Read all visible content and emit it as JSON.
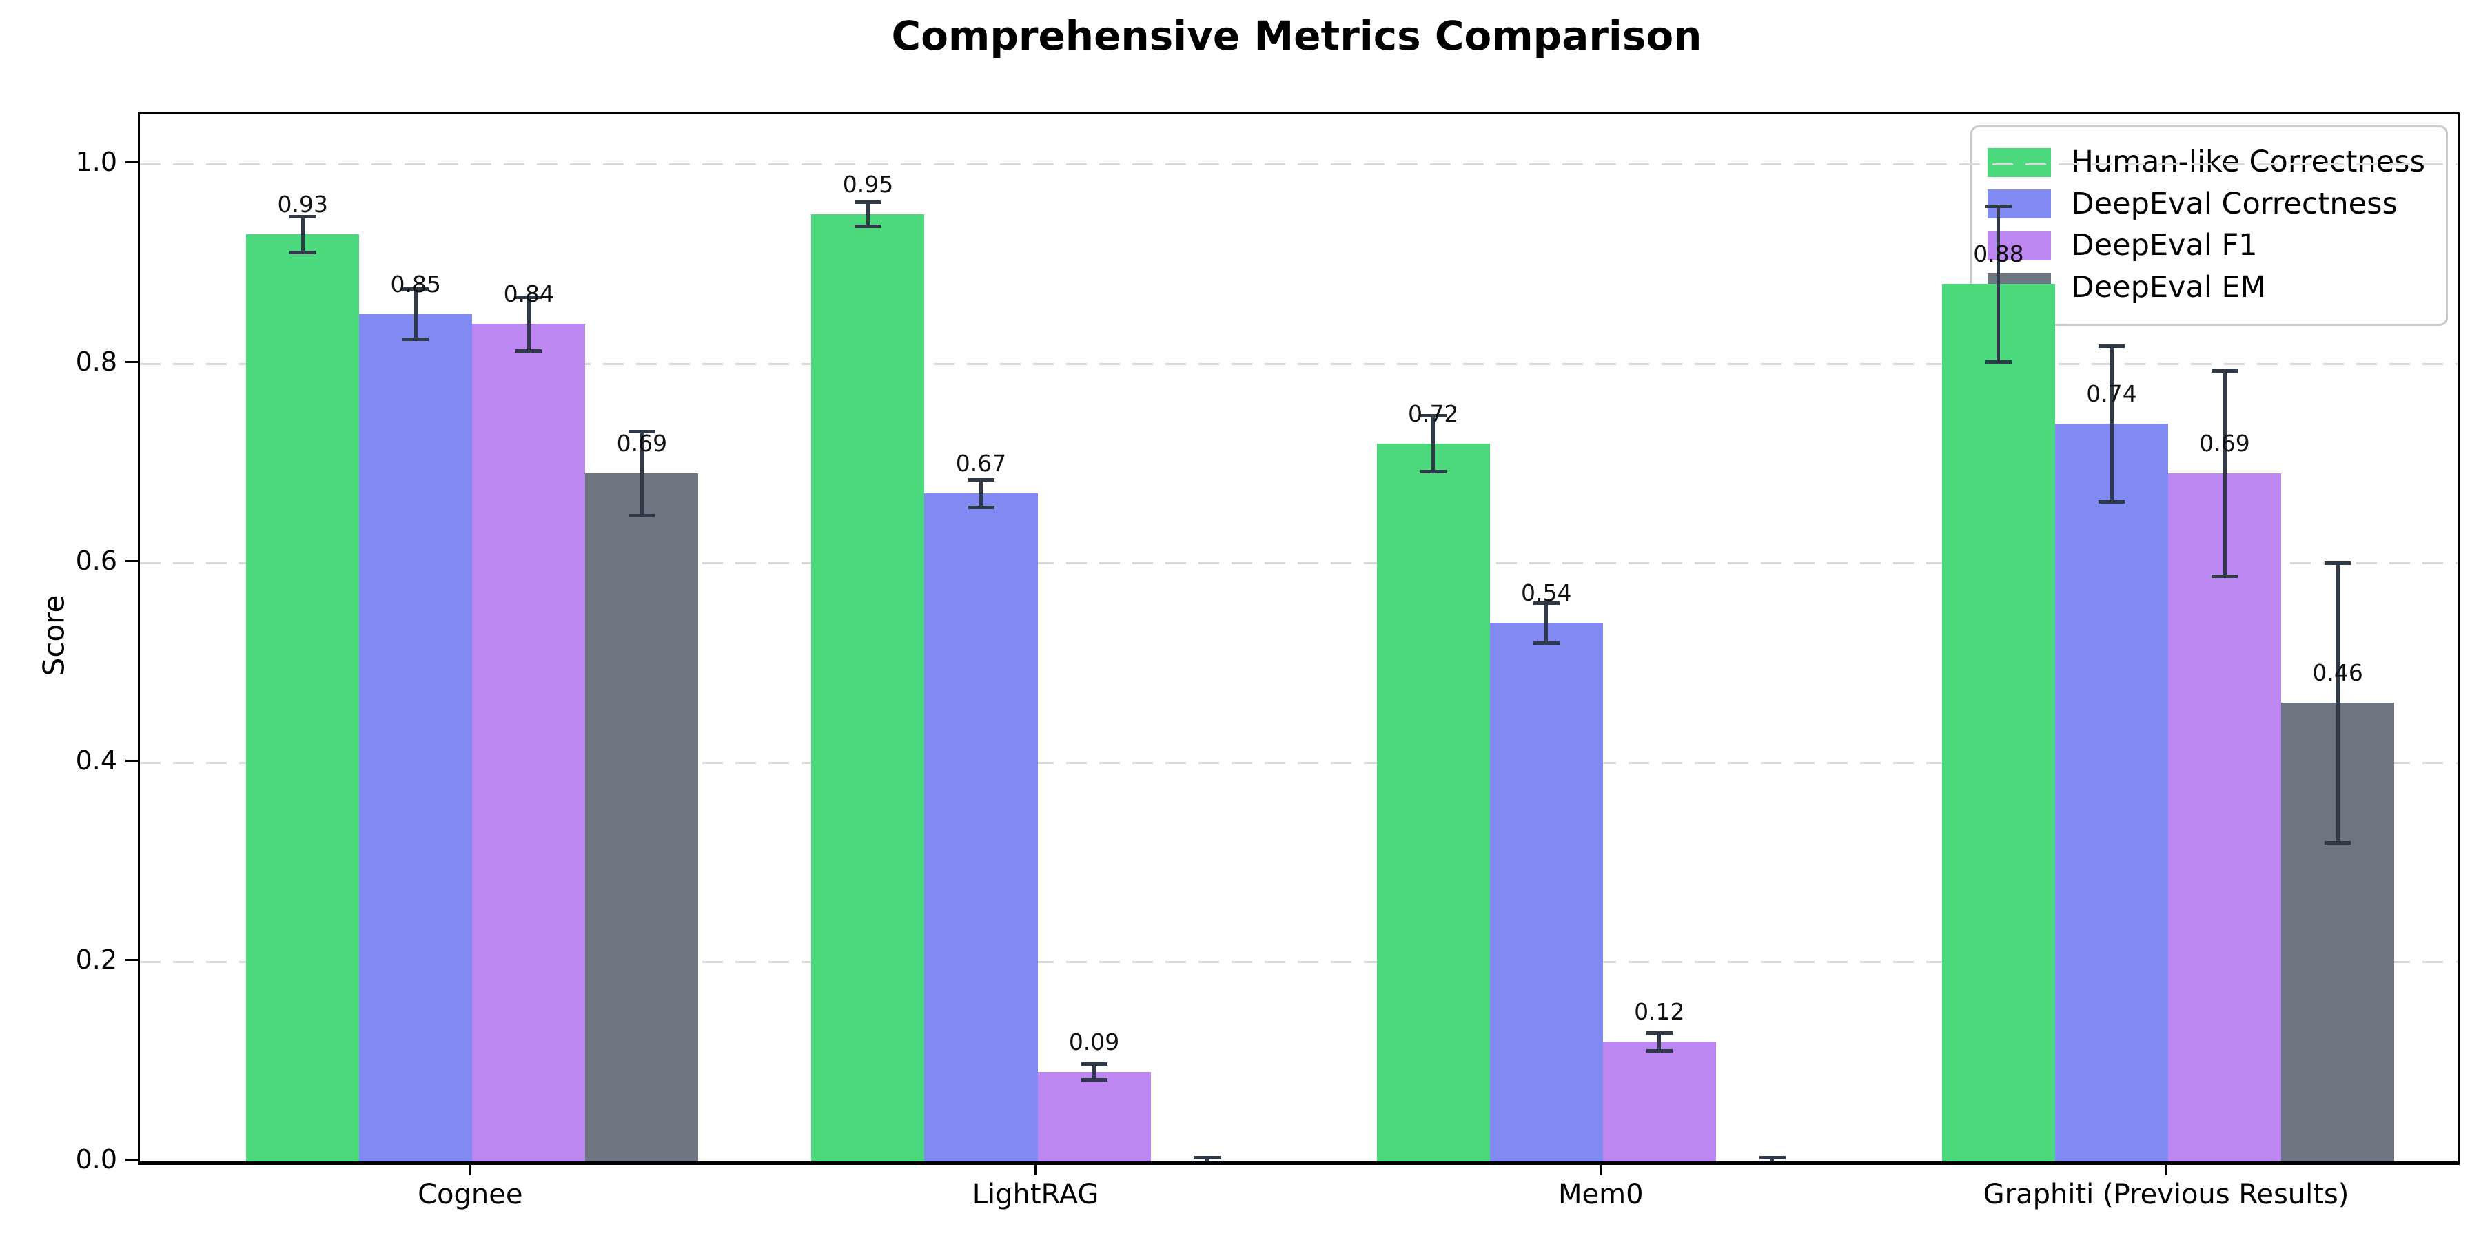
{
  "chart_data": {
    "type": "bar",
    "title": "Comprehensive Metrics Comparison",
    "ylabel": "Score",
    "xlabel": "",
    "categories": [
      "Cognee",
      "LightRAG",
      "Mem0",
      "Graphiti (Previous Results)"
    ],
    "series": [
      {
        "name": "Human-like Correctness",
        "color": "#4cd97e",
        "values": [
          0.93,
          0.95,
          0.72,
          0.88
        ],
        "errors": [
          0.018,
          0.012,
          0.028,
          0.078
        ],
        "bar_labels": [
          "0.93",
          "0.95",
          "0.72",
          "0.88"
        ]
      },
      {
        "name": "DeepEval Correctness",
        "color": "#8189f2",
        "values": [
          0.85,
          0.67,
          0.54,
          0.74
        ],
        "errors": [
          0.025,
          0.014,
          0.02,
          0.078
        ],
        "bar_labels": [
          "0.85",
          "0.67",
          "0.54",
          "0.74"
        ]
      },
      {
        "name": "DeepEval F1",
        "color": "#bd87f2",
        "values": [
          0.84,
          0.09,
          0.12,
          0.69
        ],
        "errors": [
          0.027,
          0.008,
          0.009,
          0.103
        ],
        "bar_labels": [
          "0.84",
          "0.09",
          "0.12",
          "0.69"
        ]
      },
      {
        "name": "DeepEval EM",
        "color": "#6d7580",
        "values": [
          0.69,
          0.0,
          0.0,
          0.46
        ],
        "errors": [
          0.042,
          0.004,
          0.004,
          0.14
        ],
        "bar_labels": [
          "0.69",
          "",
          "",
          "0.46"
        ]
      }
    ],
    "ylim": [
      0,
      1.05
    ],
    "yticks": [
      0.0,
      0.2,
      0.4,
      0.6,
      0.8,
      1.0
    ],
    "ytick_labels": [
      "0.0",
      "0.2",
      "0.4",
      "0.6",
      "0.8",
      "1.0"
    ],
    "grid": "horizontal-dashed",
    "legend_position": "upper right",
    "errorbar_color": "#2e3a47",
    "background_color": "#ffffff"
  }
}
